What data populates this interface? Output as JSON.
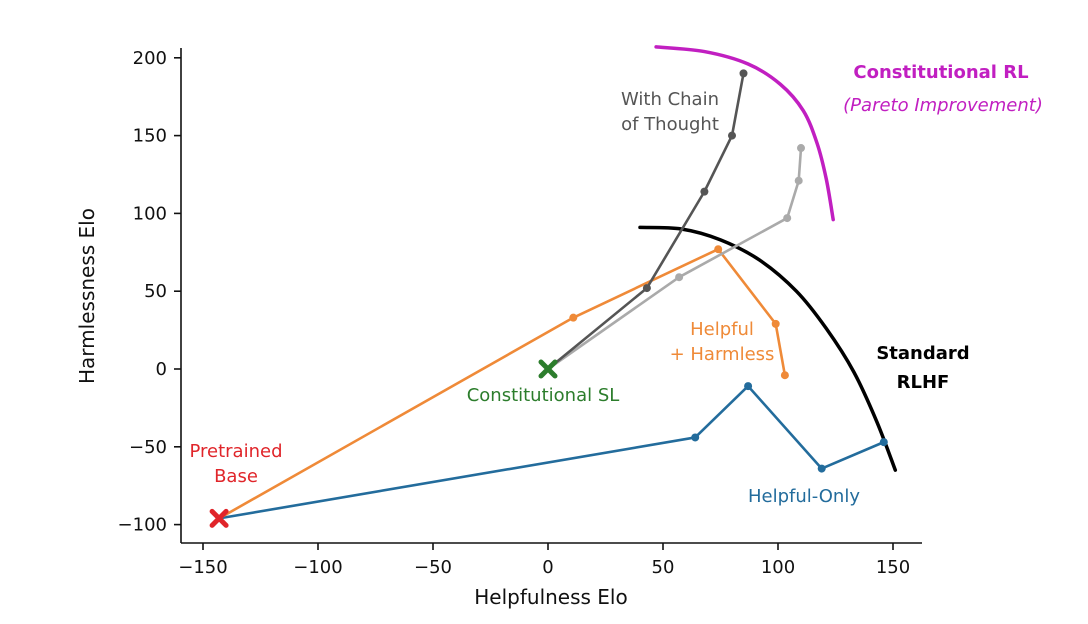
{
  "chart_data": {
    "type": "line",
    "xlabel": "Helpfulness Elo",
    "ylabel": "Harmlessness Elo",
    "xlim": [
      -155,
      162
    ],
    "ylim": [
      -112,
      207
    ],
    "xticks": [
      -150,
      -100,
      -50,
      0,
      50,
      100,
      150
    ],
    "yticks": [
      -100,
      -50,
      0,
      50,
      100,
      150,
      200
    ],
    "xtick_labels": [
      "−150",
      "−100",
      "−50",
      "0",
      "50",
      "100",
      "150"
    ],
    "ytick_labels": [
      "−100",
      "−50",
      "0",
      "50",
      "100",
      "150",
      "200"
    ],
    "grid": false,
    "series": [
      {
        "name": "Helpful-Only",
        "color": "#236c9c",
        "x": [
          -143,
          64,
          87,
          119,
          146
        ],
        "y": [
          -96,
          -44,
          -11,
          -64,
          -47
        ]
      },
      {
        "name": "Helpful + Harmless",
        "color": "#ef8a38",
        "x": [
          -143,
          11,
          74,
          99,
          103
        ],
        "y": [
          -96,
          33,
          77,
          29,
          -4
        ]
      },
      {
        "name": "Constitutional RL",
        "color": "#aaaaaa",
        "x": [
          0,
          57,
          104,
          109,
          110
        ],
        "y": [
          0,
          59,
          97,
          121,
          142
        ]
      },
      {
        "name": "With Chain of Thought",
        "color": "#555555",
        "x": [
          0,
          43,
          68,
          80,
          85
        ],
        "y": [
          0,
          52,
          114,
          150,
          190
        ]
      }
    ],
    "frontiers": [
      {
        "name": "Standard RLHF",
        "color": "#000000",
        "x": [
          40,
          58,
          75,
          92,
          108,
          121,
          133,
          143,
          151
        ],
        "y": [
          91,
          90,
          83,
          70,
          50,
          26,
          -2,
          -34,
          -65
        ]
      },
      {
        "name": "Constitutional RL (Pareto Improvement)",
        "color": "#c11fc1",
        "x": [
          47,
          68,
          87,
          101,
          111,
          117,
          121,
          124
        ],
        "y": [
          207,
          204,
          196,
          183,
          166,
          145,
          122,
          96
        ]
      }
    ],
    "markers": [
      {
        "name": "Pretrained Base",
        "x": -143,
        "y": -96,
        "color": "#e0252a"
      },
      {
        "name": "Constitutional SL",
        "x": 0,
        "y": 0,
        "color": "#2c7d2c"
      }
    ],
    "annotations": {
      "cot_line1": "With Chain",
      "cot_line2": "of Thought",
      "crl_title": "Constitutional RL",
      "crl_sub": "(Pareto Improvement)",
      "hh_line1": "Helpful",
      "hh_line2": "+ Harmless",
      "rlhf_line1": "Standard",
      "rlhf_line2": "RLHF",
      "csl": "Constitutional SL",
      "base_line1": "Pretrained",
      "base_line2": "Base",
      "helpful_only": "Helpful-Only"
    }
  }
}
